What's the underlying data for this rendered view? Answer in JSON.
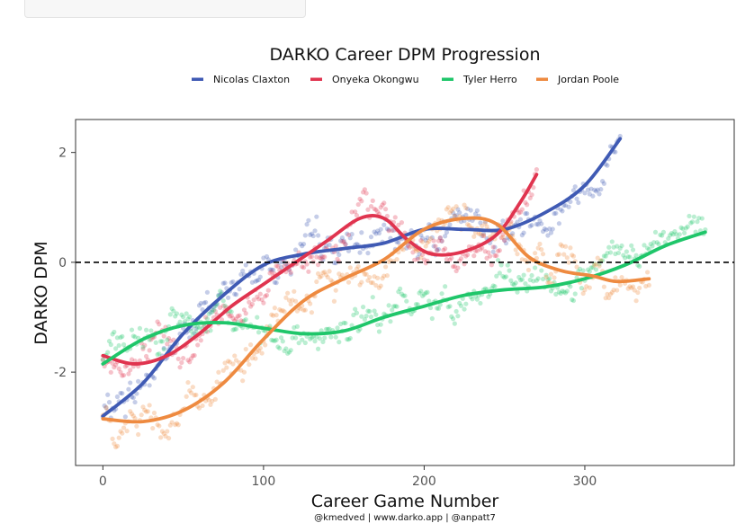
{
  "search": {
    "placeholder": ""
  },
  "chart_data": {
    "type": "scatter",
    "title": "DARKO Career DPM Progression",
    "xlabel": "Career Game Number",
    "ylabel": "DARKO DPM",
    "caption": "@kmedved | www.darko.app | @anpatt7",
    "xlim": [
      -17,
      393
    ],
    "ylim": [
      -3.7,
      2.6
    ],
    "xticks": [
      0,
      100,
      200,
      300
    ],
    "yticks": [
      -2,
      0,
      2
    ],
    "reference_line": {
      "y": 0,
      "style": "dashed"
    },
    "grid": false,
    "legend_position": "top",
    "series": [
      {
        "name": "Nicolas Claxton",
        "color": "#3F5AB4",
        "trend": [
          [
            0,
            -2.8
          ],
          [
            25,
            -2.2
          ],
          [
            50,
            -1.3
          ],
          [
            75,
            -0.6
          ],
          [
            100,
            -0.05
          ],
          [
            125,
            0.15
          ],
          [
            150,
            0.25
          ],
          [
            175,
            0.35
          ],
          [
            200,
            0.6
          ],
          [
            225,
            0.6
          ],
          [
            250,
            0.6
          ],
          [
            275,
            0.9
          ],
          [
            300,
            1.4
          ],
          [
            322,
            2.25
          ]
        ]
      },
      {
        "name": "Onyeka Okongwu",
        "color": "#E0344F",
        "trend": [
          [
            0,
            -1.7
          ],
          [
            20,
            -1.85
          ],
          [
            40,
            -1.7
          ],
          [
            60,
            -1.3
          ],
          [
            80,
            -0.8
          ],
          [
            100,
            -0.4
          ],
          [
            120,
            0.0
          ],
          [
            140,
            0.4
          ],
          [
            160,
            0.8
          ],
          [
            175,
            0.8
          ],
          [
            190,
            0.4
          ],
          [
            205,
            0.15
          ],
          [
            225,
            0.2
          ],
          [
            245,
            0.5
          ],
          [
            260,
            1.1
          ],
          [
            270,
            1.6
          ]
        ]
      },
      {
        "name": "Tyler Herro",
        "color": "#1FC66A",
        "trend": [
          [
            0,
            -1.85
          ],
          [
            25,
            -1.4
          ],
          [
            50,
            -1.15
          ],
          [
            75,
            -1.1
          ],
          [
            100,
            -1.2
          ],
          [
            125,
            -1.3
          ],
          [
            150,
            -1.25
          ],
          [
            175,
            -1.0
          ],
          [
            200,
            -0.8
          ],
          [
            225,
            -0.6
          ],
          [
            250,
            -0.5
          ],
          [
            275,
            -0.45
          ],
          [
            300,
            -0.3
          ],
          [
            325,
            -0.05
          ],
          [
            350,
            0.3
          ],
          [
            375,
            0.55
          ]
        ]
      },
      {
        "name": "Jordan Poole",
        "color": "#EE8A40",
        "trend": [
          [
            0,
            -2.85
          ],
          [
            25,
            -2.9
          ],
          [
            50,
            -2.7
          ],
          [
            75,
            -2.2
          ],
          [
            100,
            -1.4
          ],
          [
            125,
            -0.7
          ],
          [
            150,
            -0.3
          ],
          [
            175,
            0.05
          ],
          [
            200,
            0.6
          ],
          [
            225,
            0.8
          ],
          [
            245,
            0.7
          ],
          [
            265,
            0.1
          ],
          [
            285,
            -0.15
          ],
          [
            305,
            -0.25
          ],
          [
            320,
            -0.35
          ],
          [
            340,
            -0.3
          ]
        ]
      }
    ]
  }
}
